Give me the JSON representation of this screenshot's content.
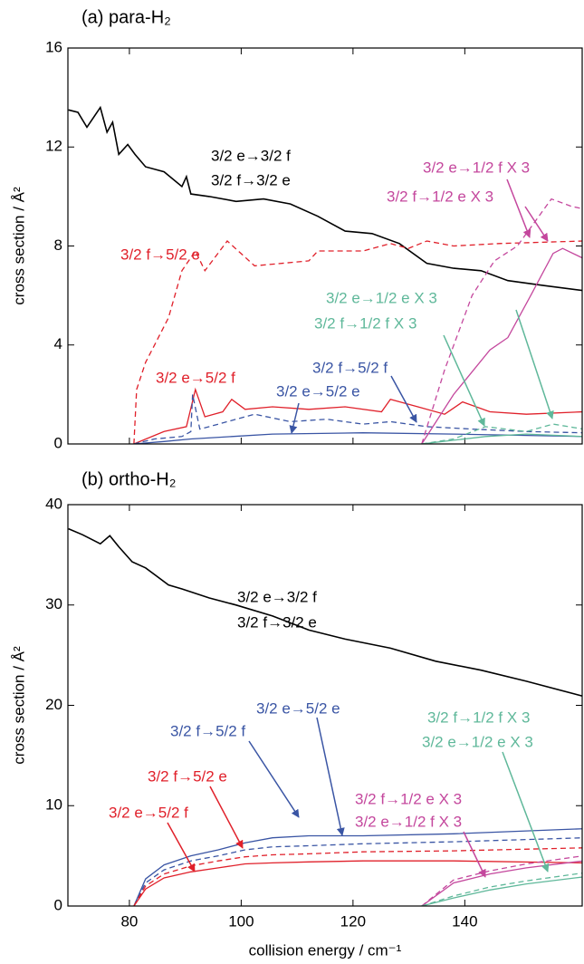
{
  "chart_data": [
    {
      "type": "line",
      "title": "(a)  para-H₂",
      "ylabel": "cross section / Å²",
      "xlim": [
        69,
        161
      ],
      "xticks": [
        80,
        100,
        120,
        140
      ],
      "show_xtick_labels": false,
      "ylim": [
        0,
        16
      ],
      "yticks": [
        0,
        4,
        8,
        12,
        16
      ],
      "series": [
        {
          "color": "#000000",
          "dash": false,
          "x": [
            69.1,
            70.8,
            72.4,
            74.8,
            76,
            77,
            78.1,
            79.7,
            81,
            82.9,
            86.2,
            89.4,
            90.2,
            91,
            94.3,
            99.1,
            104,
            108.8,
            113.7,
            118.6,
            123.4,
            128.3,
            133.2,
            138,
            142.9,
            147.7,
            154.2,
            161.2
          ],
          "values": [
            13.5,
            13.4,
            12.8,
            13.6,
            12.6,
            13.0,
            11.7,
            12.1,
            11.7,
            11.2,
            11.0,
            10.4,
            10.8,
            10.1,
            10.0,
            9.8,
            9.9,
            9.7,
            9.2,
            8.6,
            8.5,
            8.1,
            7.3,
            7.1,
            7.0,
            6.6,
            6.4,
            6.2
          ]
        },
        {
          "color": "#e0202a",
          "dash": true,
          "x": [
            80.8,
            81.3,
            82.9,
            84.5,
            87,
            89.4,
            91.8,
            93.5,
            97.5,
            102.4,
            112.1,
            113.7,
            121.8,
            126.7,
            129.9,
            133.2,
            138,
            146.1,
            161.2
          ],
          "values": [
            0,
            2.2,
            3.3,
            4.0,
            5.1,
            7.0,
            7.8,
            7.0,
            8.2,
            7.2,
            7.4,
            7.8,
            7.8,
            8.1,
            7.9,
            8.2,
            8.0,
            8.1,
            8.2
          ]
        },
        {
          "color": "#e0202a",
          "dash": false,
          "x": [
            80.8,
            86.2,
            90.2,
            91.8,
            93.5,
            96.7,
            98.3,
            100.7,
            105.6,
            112.1,
            118.6,
            125.1,
            126.7,
            131.6,
            136.4,
            139.6,
            144.5,
            151,
            161.2
          ],
          "values": [
            0,
            0.5,
            0.7,
            2.2,
            1.1,
            1.3,
            1.8,
            1.4,
            1.5,
            1.4,
            1.5,
            1.3,
            1.8,
            1.5,
            1.2,
            1.7,
            1.3,
            1.2,
            1.3
          ]
        },
        {
          "color": "#3a55a4",
          "dash": true,
          "x": [
            80.8,
            84.5,
            89.4,
            91,
            91.3,
            92.6,
            94.3,
            99.1,
            102.4,
            108.8,
            115.3,
            121.8,
            126.7,
            133.2,
            141.3,
            151,
            161.2
          ],
          "values": [
            0,
            0.2,
            0.3,
            0.5,
            2.0,
            0.6,
            0.7,
            1.0,
            1.2,
            0.9,
            1.0,
            0.8,
            0.9,
            0.7,
            0.6,
            0.5,
            0.45
          ]
        },
        {
          "color": "#3a55a4",
          "dash": false,
          "x": [
            80.8,
            86.2,
            91,
            98.3,
            105.6,
            121.8,
            138,
            161.2
          ],
          "values": [
            0,
            0.1,
            0.2,
            0.3,
            0.4,
            0.45,
            0.4,
            0.3
          ]
        },
        {
          "color": "#c4479d",
          "dash": false,
          "x": [
            132.3,
            138,
            144.5,
            147.7,
            151.8,
            155.8,
            157.5,
            161.2
          ],
          "values": [
            0,
            2.0,
            3.8,
            4.3,
            6.0,
            7.7,
            7.9,
            7.5
          ]
        },
        {
          "color": "#c4479d",
          "dash": true,
          "x": [
            132.3,
            136.4,
            141.3,
            145.3,
            149.4,
            155.5,
            159.1,
            161.2
          ],
          "values": [
            0,
            3.0,
            6.0,
            7.4,
            8.0,
            9.9,
            9.6,
            9.5
          ]
        },
        {
          "color": "#5fb89a",
          "dash": false,
          "x": [
            132.3,
            138,
            143.7,
            151,
            155.8,
            161.2
          ],
          "values": [
            0,
            0.15,
            0.3,
            0.4,
            0.35,
            0.3
          ]
        },
        {
          "color": "#5fb89a",
          "dash": true,
          "x": [
            132.3,
            138,
            143.7,
            151,
            155.8,
            161.2
          ],
          "values": [
            0,
            0.2,
            0.7,
            0.5,
            0.8,
            0.6
          ]
        }
      ],
      "annotations": [
        {
          "text": "3/2 e→3/2 f",
          "color": "#000000"
        },
        {
          "text": "3/2 f→3/2 e",
          "color": "#000000"
        },
        {
          "text": "3/2 e→1/2 f X 3",
          "color": "#c4479d"
        },
        {
          "text": "3/2 f→1/2 e X 3",
          "color": "#c4479d"
        },
        {
          "text": "3/2 f→5/2 e",
          "color": "#e0202a"
        },
        {
          "text": "3/2 e→1/2 e X 3",
          "color": "#5fb89a"
        },
        {
          "text": "3/2 f→1/2 f X 3",
          "color": "#5fb89a"
        },
        {
          "text": "3/2 e→5/2 f",
          "color": "#e0202a"
        },
        {
          "text": "3/2 f→5/2 f",
          "color": "#3a55a4"
        },
        {
          "text": "3/2 e→5/2 e",
          "color": "#3a55a4"
        }
      ]
    },
    {
      "type": "line",
      "title": "(b)  ortho-H₂",
      "ylabel": "cross section / Å²",
      "xlabel": "collision energy / cm⁻¹",
      "xlim": [
        69,
        161
      ],
      "xticks": [
        80,
        100,
        120,
        140
      ],
      "show_xtick_labels": true,
      "ylim": [
        0,
        40
      ],
      "yticks": [
        0,
        10,
        20,
        30,
        40
      ],
      "series": [
        {
          "color": "#000000",
          "dash": false,
          "x": [
            69.1,
            71.6,
            74.8,
            76.5,
            78.1,
            80.5,
            82.9,
            87,
            89.4,
            94.3,
            99.1,
            105.6,
            112.1,
            118.6,
            126.7,
            134.8,
            142.9,
            151,
            161.2
          ],
          "values": [
            37.6,
            37,
            36.1,
            36.9,
            35.8,
            34.3,
            33.7,
            32,
            31.6,
            30.7,
            30,
            28.9,
            27.5,
            26.6,
            25.7,
            24.4,
            23.5,
            22.4,
            20.9
          ]
        },
        {
          "color": "#3a55a4",
          "dash": false,
          "x": [
            80.8,
            82.9,
            86.2,
            91,
            95.9,
            100.7,
            105.6,
            112.1,
            121.8,
            138,
            161.2
          ],
          "values": [
            0,
            2.7,
            4.1,
            5.0,
            5.6,
            6.3,
            6.8,
            7.0,
            7.0,
            7.2,
            7.7
          ]
        },
        {
          "color": "#3a55a4",
          "dash": true,
          "x": [
            80.8,
            82.9,
            86.2,
            91,
            95.9,
            100.7,
            105.6,
            112.1,
            121.8,
            138,
            161.2
          ],
          "values": [
            0,
            2.3,
            3.6,
            4.5,
            5.0,
            5.6,
            5.9,
            6.0,
            6.2,
            6.4,
            6.8
          ]
        },
        {
          "color": "#e0202a",
          "dash": true,
          "x": [
            80.8,
            82.9,
            86.2,
            91,
            95.9,
            100.7,
            105.6,
            112.1,
            121.8,
            138,
            161.2
          ],
          "values": [
            0,
            2.0,
            3.2,
            4.0,
            4.5,
            4.9,
            5.1,
            5.2,
            5.4,
            5.5,
            5.8
          ]
        },
        {
          "color": "#e0202a",
          "dash": false,
          "x": [
            80.8,
            82.9,
            86.2,
            91,
            95.9,
            100.7,
            105.6,
            112.1,
            121.8,
            138,
            161.2
          ],
          "values": [
            0,
            1.7,
            2.8,
            3.4,
            3.8,
            4.2,
            4.3,
            4.4,
            4.5,
            4.5,
            4.3
          ]
        },
        {
          "color": "#c4479d",
          "dash": false,
          "x": [
            132.3,
            138,
            144.5,
            151,
            161.2
          ],
          "values": [
            0,
            2.3,
            3.2,
            3.8,
            4.5
          ]
        },
        {
          "color": "#c4479d",
          "dash": true,
          "x": [
            132.3,
            138,
            144.5,
            151,
            161.2
          ],
          "values": [
            0,
            2.6,
            3.5,
            4.2,
            5.0
          ]
        },
        {
          "color": "#5fb89a",
          "dash": false,
          "x": [
            132.3,
            138,
            144.5,
            151,
            161.2
          ],
          "values": [
            0,
            0.8,
            1.6,
            2.2,
            2.9
          ]
        },
        {
          "color": "#5fb89a",
          "dash": true,
          "x": [
            132.3,
            138,
            144.5,
            151,
            161.2
          ],
          "values": [
            0,
            1.0,
            1.9,
            2.5,
            3.3
          ]
        }
      ],
      "annotations": [
        {
          "text": "3/2 e→3/2 f",
          "color": "#000000"
        },
        {
          "text": "3/2 f→3/2 e",
          "color": "#000000"
        },
        {
          "text": "3/2 e→5/2 e",
          "color": "#3a55a4"
        },
        {
          "text": "3/2 f→5/2 f",
          "color": "#3a55a4"
        },
        {
          "text": "3/2 f→5/2 e",
          "color": "#e0202a"
        },
        {
          "text": "3/2 e→5/2 f",
          "color": "#e0202a"
        },
        {
          "text": "3/2 f→1/2 f X 3",
          "color": "#5fb89a"
        },
        {
          "text": "3/2 e→1/2 e X 3",
          "color": "#5fb89a"
        },
        {
          "text": "3/2 f→1/2 e X 3",
          "color": "#c4479d"
        },
        {
          "text": "3/2 e→1/2 f X 3",
          "color": "#c4479d"
        }
      ]
    }
  ]
}
